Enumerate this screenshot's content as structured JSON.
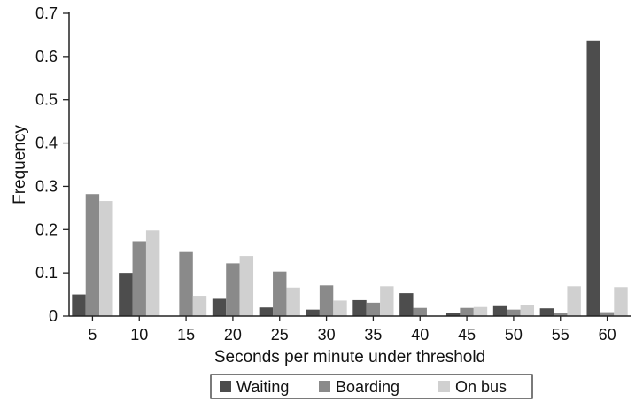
{
  "chart_data": {
    "type": "bar",
    "title": "",
    "xlabel": "Seconds per minute under threshold",
    "ylabel": "Frequency",
    "ylim": [
      0,
      0.7
    ],
    "yticks": [
      "0",
      "0.1",
      "0.2",
      "0.3",
      "0.4",
      "0.5",
      "0.6",
      "0.7"
    ],
    "yticks_values": [
      0,
      0.1,
      0.2,
      0.3,
      0.4,
      0.5,
      0.6,
      0.7
    ],
    "categories": [
      "5",
      "10",
      "15",
      "20",
      "25",
      "30",
      "35",
      "40",
      "45",
      "50",
      "55",
      "60"
    ],
    "grid": false,
    "legend": "bottom",
    "series": [
      {
        "name": "Waiting",
        "color": "#4d4d4d",
        "values": [
          0.05,
          0.1,
          0.0,
          0.04,
          0.02,
          0.015,
          0.037,
          0.053,
          0.008,
          0.023,
          0.018,
          0.637
        ]
      },
      {
        "name": "Boarding",
        "color": "#8a8a8a",
        "values": [
          0.282,
          0.173,
          0.148,
          0.122,
          0.103,
          0.071,
          0.031,
          0.019,
          0.019,
          0.015,
          0.007,
          0.009
        ]
      },
      {
        "name": "On bus",
        "color": "#d0d0d0",
        "values": [
          0.266,
          0.198,
          0.047,
          0.139,
          0.066,
          0.036,
          0.069,
          0.0,
          0.021,
          0.025,
          0.069,
          0.067
        ]
      }
    ]
  }
}
